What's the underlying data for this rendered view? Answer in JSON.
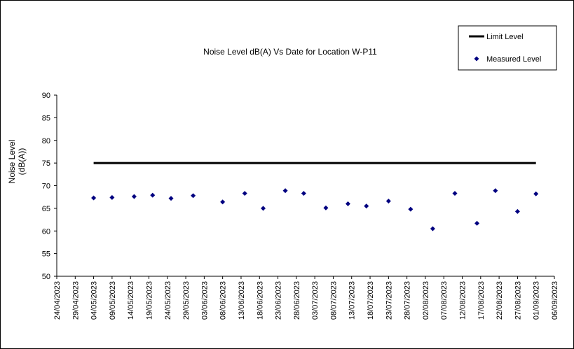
{
  "chart_data": {
    "type": "scatter",
    "title": "Noise Level dB(A) Vs Date for Location W-P11",
    "ylabel_line1": "Noise Level",
    "ylabel_line2": "(dB(A))",
    "ylim": [
      50,
      90
    ],
    "yticks": [
      50,
      55,
      60,
      65,
      70,
      75,
      80,
      85,
      90
    ],
    "xlim": [
      "2023-04-24",
      "2023-09-06"
    ],
    "xticks": [
      "24/04/2023",
      "29/04/2023",
      "04/05/2023",
      "09/05/2023",
      "14/05/2023",
      "19/05/2023",
      "24/05/2023",
      "29/05/2023",
      "03/06/2023",
      "08/06/2023",
      "13/06/2023",
      "18/06/2023",
      "23/06/2023",
      "28/06/2023",
      "03/07/2023",
      "08/07/2023",
      "13/07/2023",
      "18/07/2023",
      "23/07/2023",
      "28/07/2023",
      "02/08/2023",
      "07/08/2023",
      "12/08/2023",
      "17/08/2023",
      "22/08/2023",
      "27/08/2023",
      "01/09/2023",
      "06/09/2023"
    ],
    "grid": false,
    "legend_position": "top-right",
    "series": [
      {
        "name": "Limit Level",
        "kind": "line",
        "color": "#000000",
        "points": [
          {
            "x": "2023-05-04",
            "y": 75
          },
          {
            "x": "2023-09-01",
            "y": 75
          }
        ]
      },
      {
        "name": "Measured Level",
        "kind": "marker",
        "color": "#000080",
        "points": [
          {
            "x": "2023-05-04",
            "y": 67.3
          },
          {
            "x": "2023-05-09",
            "y": 67.4
          },
          {
            "x": "2023-05-15",
            "y": 67.6
          },
          {
            "x": "2023-05-20",
            "y": 67.9
          },
          {
            "x": "2023-05-25",
            "y": 67.2
          },
          {
            "x": "2023-05-31",
            "y": 67.8
          },
          {
            "x": "2023-06-08",
            "y": 66.4
          },
          {
            "x": "2023-06-14",
            "y": 68.3
          },
          {
            "x": "2023-06-19",
            "y": 65.0
          },
          {
            "x": "2023-06-25",
            "y": 68.9
          },
          {
            "x": "2023-06-30",
            "y": 68.3
          },
          {
            "x": "2023-07-06",
            "y": 65.1
          },
          {
            "x": "2023-07-12",
            "y": 66.0
          },
          {
            "x": "2023-07-17",
            "y": 65.5
          },
          {
            "x": "2023-07-23",
            "y": 66.6
          },
          {
            "x": "2023-07-29",
            "y": 64.8
          },
          {
            "x": "2023-08-04",
            "y": 60.5
          },
          {
            "x": "2023-08-10",
            "y": 68.3
          },
          {
            "x": "2023-08-16",
            "y": 61.7
          },
          {
            "x": "2023-08-21",
            "y": 68.9
          },
          {
            "x": "2023-08-27",
            "y": 64.3
          },
          {
            "x": "2023-09-01",
            "y": 68.2
          }
        ]
      }
    ]
  }
}
